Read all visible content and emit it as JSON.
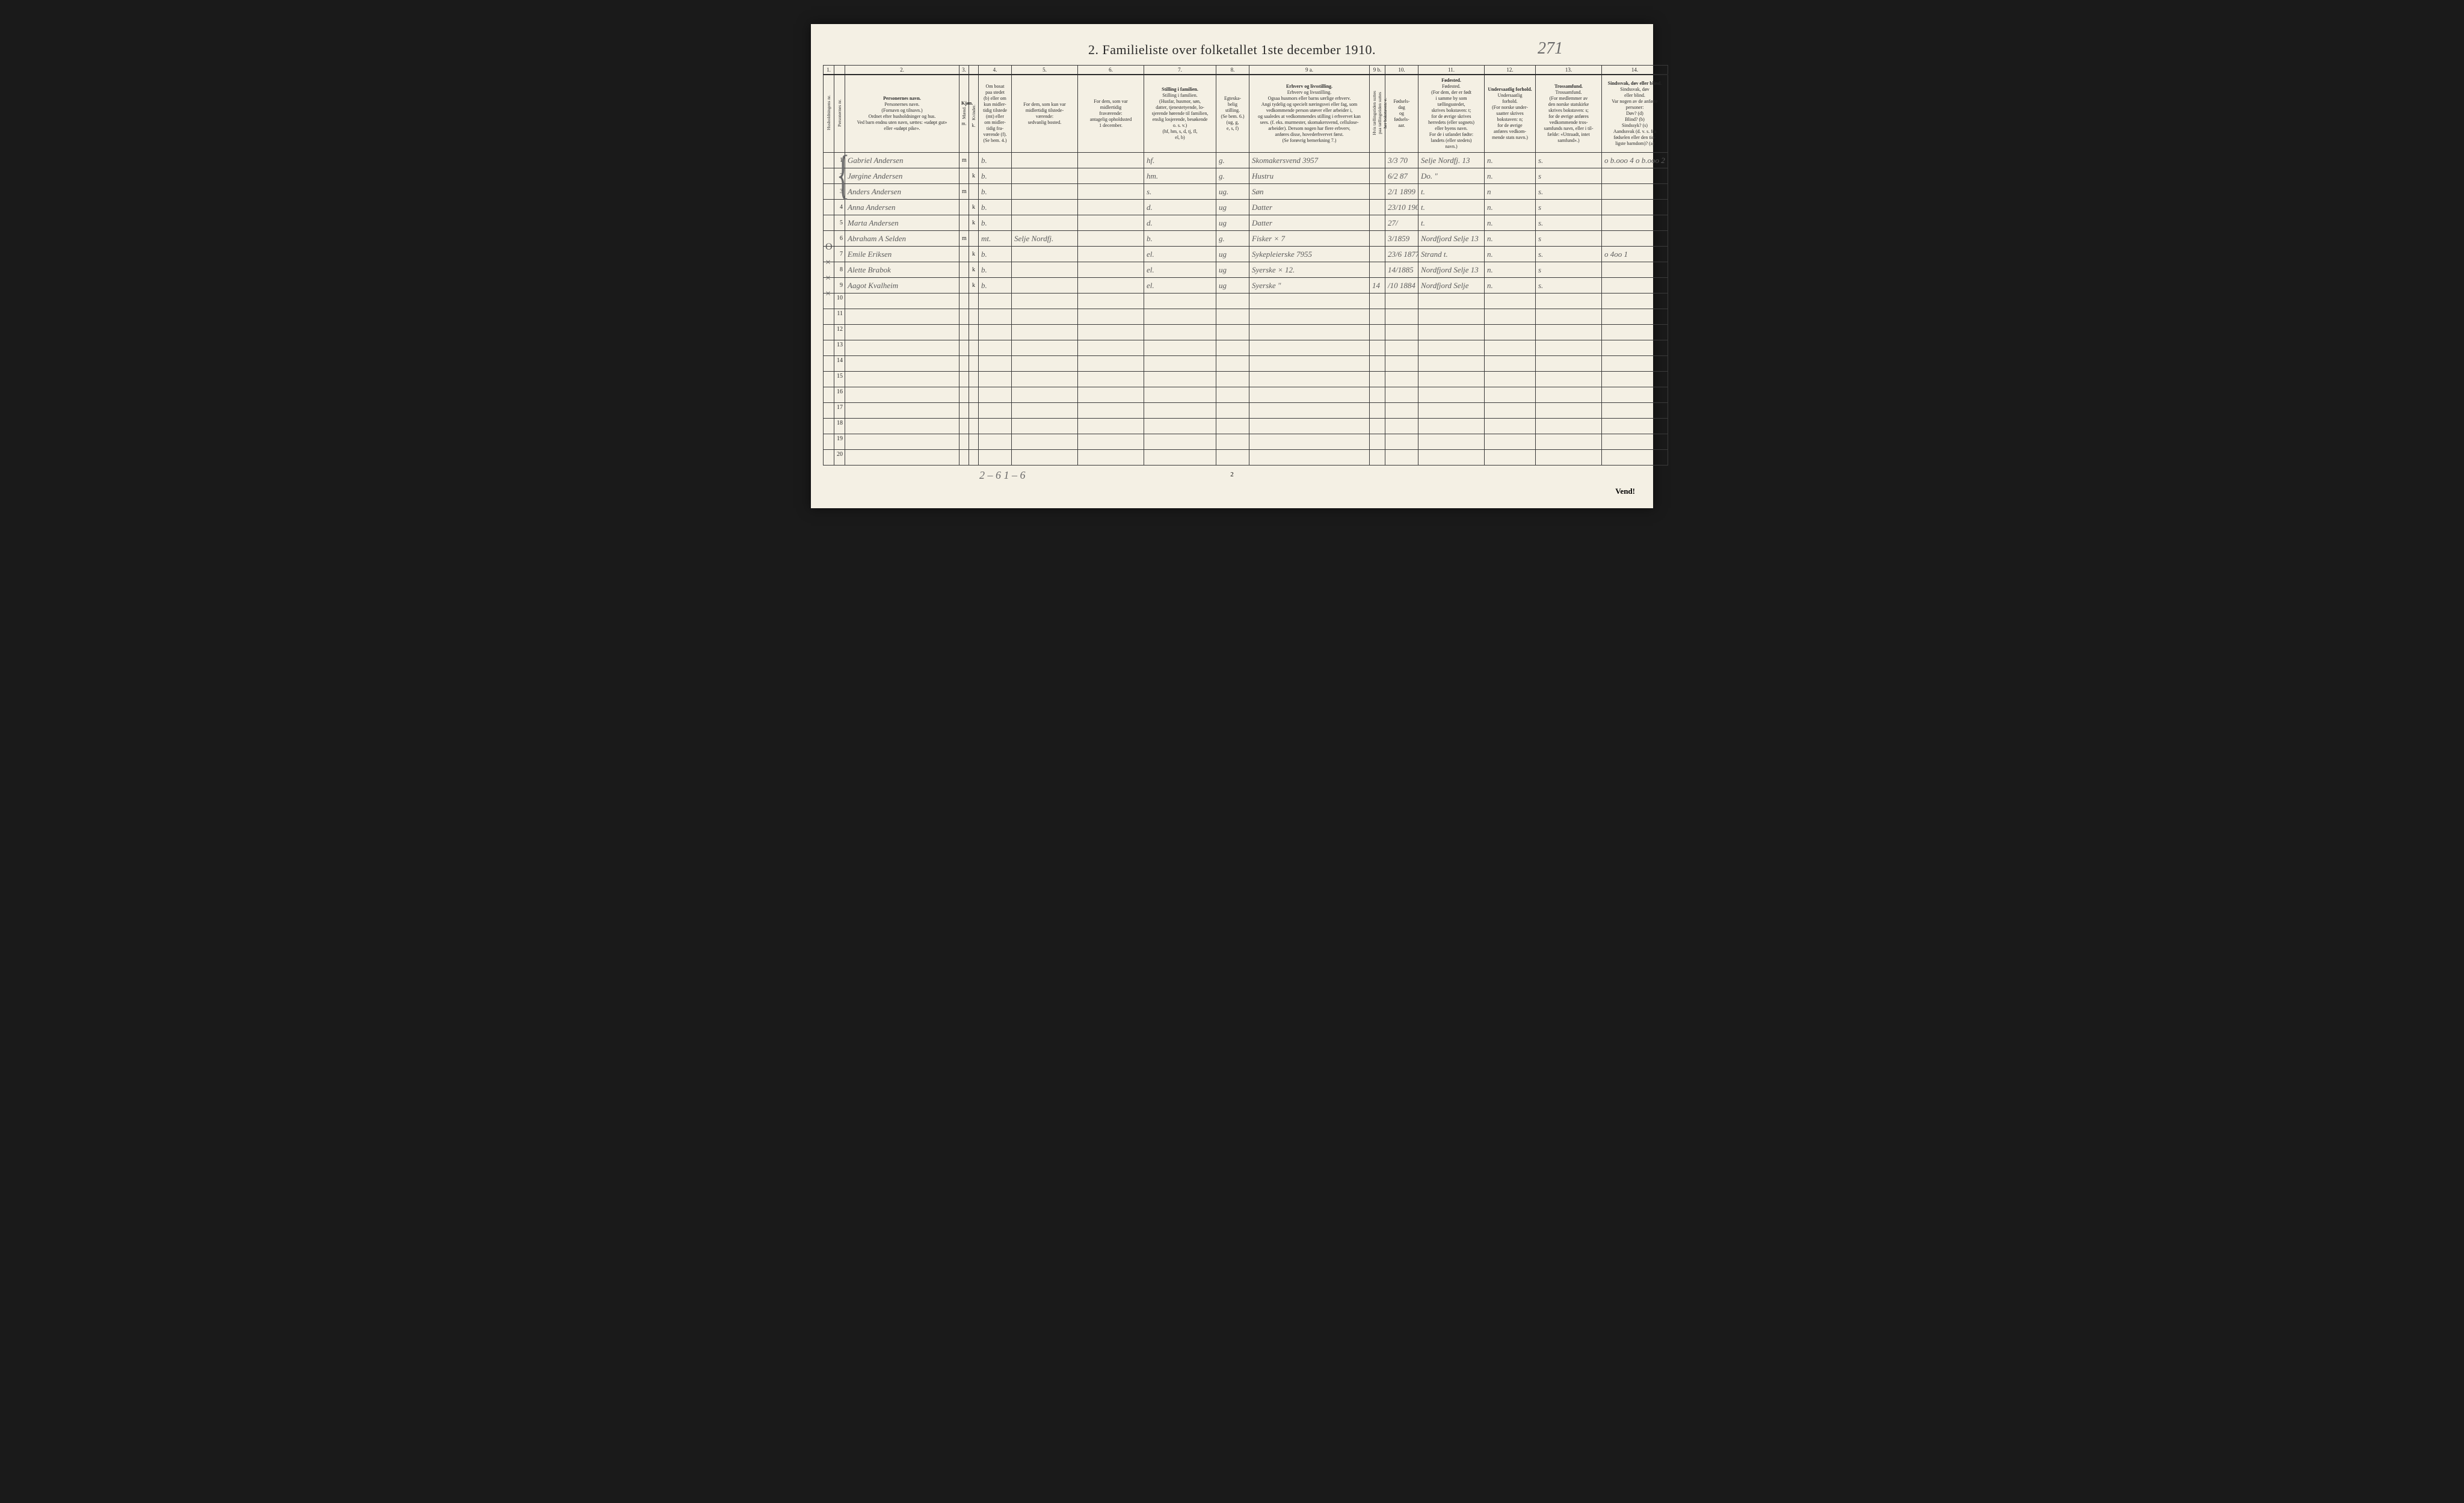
{
  "title": "2.   Familieliste over folketallet 1ste december 1910.",
  "handwritten_top_right": "271",
  "col_numbers": [
    "1.",
    "",
    "2.",
    "3.",
    "",
    "4.",
    "5.",
    "6.",
    "7.",
    "8.",
    "9 a.",
    "9 b.",
    "10.",
    "11.",
    "12.",
    "13.",
    "14."
  ],
  "headers": {
    "c1a": "Husholdningens nr.",
    "c1b": "Personernes nr.",
    "c2": "Personernes navn.\n(Fornavn og tilnavn.)\nOrdnet efter husholdninger og hus.\nVed barn endnu uten navn, sættes: «udøpt gut»\neller «udøpt pike».",
    "c3": "Kjøn.",
    "c3a": "Mænd.",
    "c3b": "Kvinder.",
    "c3sub": "m.  k.",
    "c4": "Om bosat\npaa stedet\n(b) eller om\nkun midler-\ntidig tilstede\n(mt) eller\nom midler-\ntidig fra-\nværende (f).\n(Se bem. 4.)",
    "c5": "For dem, som kun var\nmidlertidig tilstede-\nværende:\nsedvanlig bosted.",
    "c6": "For dem, som var\nmidlertidig\nfraværende:\nantagelig opholdssted\n1 december.",
    "c7": "Stilling i familien.\n(Husfar, husmor, søn,\ndatter, tjenestetyende, lo-\nsjerende hørende til familien,\nenslig losjerende, besøkende\no. s. v.)\n(hf, hm, s, d, tj, fl,\nel, b)",
    "c8": "Egteska-\nbelig\nstilling.\n(Se bem. 6.)\n(ug, g,\ne, s, f)",
    "c9a": "Erhverv og livsstilling.\nOgsaa husmors eller barns særlige erhverv.\nAngi tydelig og specielt næringsvei eller fag, som\nvedkommende person utøver eller arbeider i,\nog saaledes at vedkommendes stilling i erhvervet kan\nsees. (f. eks. murmester, skomakersvend, cellulose-\narbeider). Dersom nogen har flere erbverv,\nanføres disse, hovederhvervet først.\n(Se forøvrig bemerkning 7.)",
    "c9b": "Hvis tællingstiden suttes\npaa tællingstiden suttes\nher bokstaven: e.",
    "c10": "Fødsels-\ndag\nog\nfødsels-\naar.",
    "c11": "Fødested.\n(For dem, der er født\ni samme by som\ntællingsstedet,\nskrives bokstaven: t;\nfor de øvrige skrives\nherredets (eller sognets)\neller byens navn.\nFor de i utlandet fødte:\nlandets (eller stedets)\nnavn.)",
    "c12": "Undersaatlig\nforhold.\n(For norske under-\nsaatter skrives\nbokstaven: n;\nfor de øvrige\nanføres vedkom-\nmende stats navn.)",
    "c13": "Trossamfund.\n(For medlemmer av\nden norske statskirke\nskrives bokstaven: s;\nfor de øvrige anføres\nvedkommende tros-\nsamfunds navn, eller i til-\nfælde: «Uttraadt, intet\nsamfund».)",
    "c14": "Sindssvak, døv\neller blind.\nVar nogen av de anførte\npersoner:\nDøv?        (d)\nBlind?      (b)\nSindssyk?  (s)\nAandssvak (d. v. s. fra\nfødselen eller den tid-\nligste barndom)?  (a)"
  },
  "col_widths": {
    "c1a": 18,
    "c1b": 18,
    "c2": 190,
    "c3a": 16,
    "c3b": 16,
    "c4": 55,
    "c5": 110,
    "c6": 110,
    "c7": 120,
    "c8": 55,
    "c9a": 200,
    "c9b": 26,
    "c10": 55,
    "c11": 110,
    "c12": 85,
    "c13": 110,
    "c14": 110
  },
  "rows": [
    {
      "n": "1",
      "name": "Gabriel Andersen",
      "m": "m",
      "k": "",
      "b": "b.",
      "c5": "",
      "c6": "",
      "fam": "hf.",
      "eg": "g.",
      "erh": "Skomakersvend     3957",
      "c9b": "",
      "fod": "3/3 70",
      "sted": "Selje Nordfj.  13",
      "u": "n.",
      "t": "s.",
      "s": "o  b.ooo  4\no  b.ooo  2"
    },
    {
      "n": "2",
      "name": "Jørgine Andersen",
      "m": "",
      "k": "k",
      "b": "b.",
      "c5": "",
      "c6": "",
      "fam": "hm.",
      "eg": "g.",
      "erh": "Hustru",
      "c9b": "",
      "fod": "6/2 87",
      "sted": "Do.   \"",
      "u": "n.",
      "t": "s",
      "s": ""
    },
    {
      "n": "3",
      "name": "Anders Andersen",
      "m": "m",
      "k": "",
      "b": "b.",
      "c5": "",
      "c6": "",
      "fam": "s.",
      "eg": "ug.",
      "erh": "Søn",
      "c9b": "",
      "fod": "2/1 1899",
      "sted": "t.",
      "u": "n",
      "t": "s.",
      "s": ""
    },
    {
      "n": "4",
      "name": "Anna Andersen",
      "m": "",
      "k": "k",
      "b": "b.",
      "c5": "",
      "c6": "",
      "fam": "d.",
      "eg": "ug",
      "erh": "Datter",
      "c9b": "",
      "fod": "23/10 1904",
      "sted": "t.",
      "u": "n.",
      "t": "s",
      "s": ""
    },
    {
      "n": "5",
      "name": "Marta Andersen",
      "m": "",
      "k": "k",
      "b": "b.",
      "c5": "",
      "c6": "",
      "fam": "d.",
      "eg": "ug",
      "erh": "Datter",
      "c9b": "",
      "fod": "27/",
      "sted": "t.",
      "u": "n.",
      "t": "s.",
      "s": ""
    },
    {
      "n": "6",
      "name": "Abraham A Selden",
      "m": "m",
      "k": "",
      "b": "mt.",
      "c5": "Selje Nordfj.",
      "c6": "",
      "fam": "b.",
      "eg": "g.",
      "erh": "Fisker    × 7",
      "c9b": "",
      "fod": "3/1859",
      "sted": "Nordfjord  Selje 13",
      "u": "n.",
      "t": "s",
      "s": ""
    },
    {
      "n": "7",
      "name": "Emile Eriksen",
      "m": "",
      "k": "k",
      "b": "b.",
      "c5": "",
      "c6": "",
      "fam": "el.",
      "eg": "ug",
      "erh": "Sykepleierske 7955",
      "c9b": "",
      "fod": "23/6 1877",
      "sted": "Strand   t.",
      "u": "n.",
      "t": "s.",
      "s": "o   4oo  1"
    },
    {
      "n": "8",
      "name": "Alette Brabok",
      "m": "",
      "k": "k",
      "b": "b.",
      "c5": "",
      "c6": "",
      "fam": "el.",
      "eg": "ug",
      "erh": "Syerske   × 12.",
      "c9b": "",
      "fod": "14/1885",
      "sted": "Nordfjord  Selje 13",
      "u": "n.",
      "t": "s",
      "s": ""
    },
    {
      "n": "9",
      "name": "Aagot Kvalheim",
      "m": "",
      "k": "k",
      "b": "b.",
      "c5": "",
      "c6": "",
      "fam": "el.",
      "eg": "ug",
      "erh": "Syerske   \"",
      "c9b": "14",
      "fod": "/10 1884",
      "sted": "Nordfjord  Selje",
      "u": "n.",
      "t": "s.",
      "s": ""
    }
  ],
  "empty_rows": [
    "10",
    "11",
    "12",
    "13",
    "14",
    "15",
    "16",
    "17",
    "18",
    "19",
    "20"
  ],
  "footer_hand": "2 – 6     1 – 6",
  "page_number": "2",
  "vend_text": "Vend!",
  "margin_marks": "O\n×\n×\n×",
  "colors": {
    "page_bg": "#f4f0e4",
    "outer_bg": "#1a1a1a",
    "rule": "#3a3a3a",
    "print_text": "#2a2a2a",
    "handwriting": "#5a5a5a"
  }
}
